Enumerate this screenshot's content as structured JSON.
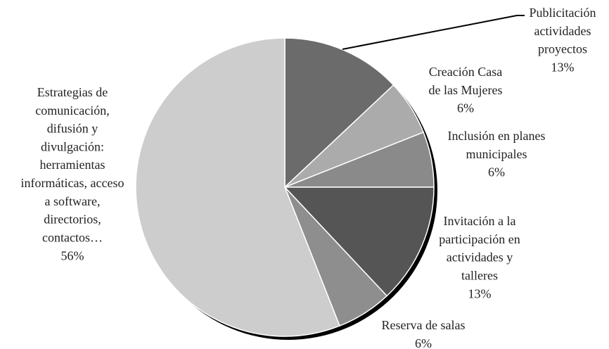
{
  "chart_data": {
    "type": "pie",
    "categories": [
      "Publicitación\nactividades\nproyectos",
      "Creación Casa\nde las Mujeres",
      "Inclusión en planes\nmunicipales",
      "Invitación a la\nparticipación en\nactividades y\ntalleres",
      "Reserva de salas",
      "Estrategias de\ncomunicación,\ndifusión y\ndivulgación:\nherramientas\ninformáticas, acceso\na software,\ndirectorios,\ncontactos…"
    ],
    "values": [
      13,
      6,
      6,
      13,
      6,
      56
    ],
    "value_labels": [
      "13%",
      "6%",
      "6%",
      "13%",
      "6%",
      "56%"
    ],
    "colors": [
      "#6b6b6b",
      "#ababab",
      "#8a8a8a",
      "#555555",
      "#8e8e8e",
      "#cdcdcd"
    ]
  }
}
